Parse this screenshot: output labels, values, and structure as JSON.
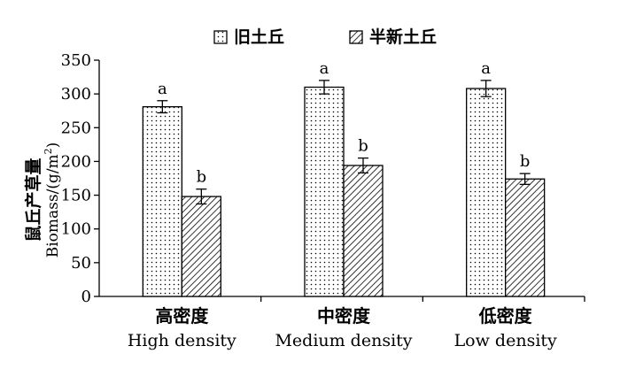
{
  "chart_data": {
    "type": "bar",
    "ylabel_cn": "鼠丘产草量",
    "ylabel_en": "Biomass/(g/m",
    "ylabel_sup": "2",
    "ylabel_close": ")",
    "ylim": [
      0,
      350
    ],
    "yticks": [
      0,
      50,
      100,
      150,
      200,
      250,
      300,
      350
    ],
    "grid": false,
    "legend_position": "top-center",
    "categories": [
      {
        "cn": "高密度",
        "en": "High density"
      },
      {
        "cn": "中密度",
        "en": "Medium density"
      },
      {
        "cn": "低密度",
        "en": "Low density"
      }
    ],
    "series": [
      {
        "name": "旧土丘",
        "pattern": "dots",
        "values": [
          281,
          310,
          308
        ],
        "errors": [
          9,
          10,
          12
        ],
        "labels": [
          "a",
          "a",
          "a"
        ]
      },
      {
        "name": "半新土丘",
        "pattern": "hatch",
        "values": [
          148,
          194,
          174
        ],
        "errors": [
          11,
          11,
          8
        ],
        "labels": [
          "b",
          "b",
          "b"
        ]
      }
    ]
  }
}
